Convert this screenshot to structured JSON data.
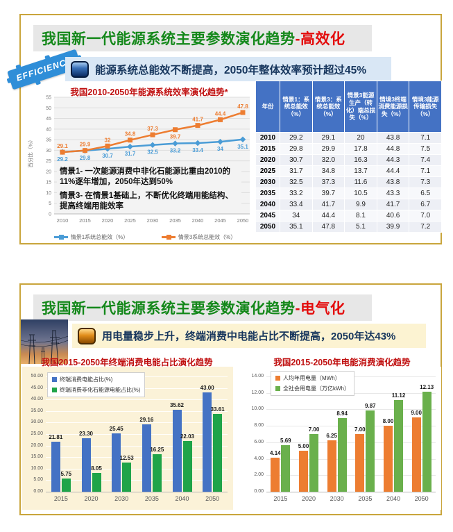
{
  "slide1": {
    "title": "我国新一代能源系统主要参数演化趋势",
    "title_suffix": "-高效化",
    "stamp_label": "EFFICIENCY",
    "banner_text": "能源系统总能效不断提高，2050年整体效率预计超过45%",
    "annotations": [
      "情景1- 一次能源消费中非化石能源比重由2010的11%逐年增加，2050年达到50%",
      "情景3- 在情景1基础上，不断优化终端用能结构、提高终端用能效率"
    ],
    "table": {
      "headers": [
        "年份",
        "情景1：系统总能效（%）",
        "情景3：系统总能效（%）",
        "情景3能源生产（转化）端总损失（%）",
        "情境3终端消费能源损失（%）",
        "情境3能源传输损失（%）"
      ],
      "rows": [
        [
          "2010",
          "29.2",
          "29.1",
          "20",
          "43.8",
          "7.1"
        ],
        [
          "2015",
          "29.8",
          "29.9",
          "17.8",
          "44.8",
          "7.5"
        ],
        [
          "2020",
          "30.7",
          "32.0",
          "16.3",
          "44.3",
          "7.4"
        ],
        [
          "2025",
          "31.7",
          "34.8",
          "13.7",
          "44.4",
          "7.1"
        ],
        [
          "2030",
          "32.5",
          "37.3",
          "11.6",
          "43.8",
          "7.3"
        ],
        [
          "2035",
          "33.2",
          "39.7",
          "10.5",
          "43.3",
          "6.5"
        ],
        [
          "2040",
          "33.4",
          "41.7",
          "9.9",
          "41.7",
          "6.7"
        ],
        [
          "2045",
          "34",
          "44.4",
          "8.1",
          "40.6",
          "7.0"
        ],
        [
          "2050",
          "35.1",
          "47.8",
          "5.1",
          "39.9",
          "7.2"
        ]
      ]
    }
  },
  "slide2": {
    "title": "我国新一代能源系统主要参数演化趋势",
    "title_suffix": "-电气化",
    "banner_text": "用电量稳步上升，终端消费中电能占比不断提高，2050年达43%"
  },
  "chart_data": [
    {
      "type": "line",
      "title": "我国2010-2050年能源系统效率演化趋势*",
      "x": [
        "2010",
        "2015",
        "2020",
        "2025",
        "2030",
        "2035",
        "2040",
        "2045",
        "2050"
      ],
      "series": [
        {
          "name": "情景1系统总能效（%）",
          "color": "#4a9cd6",
          "values": [
            29.2,
            29.8,
            30.7,
            31.7,
            32.5,
            33.2,
            33.4,
            34,
            35.1
          ]
        },
        {
          "name": "情景3系统总能效（%）",
          "color": "#ed7d31",
          "values": [
            29.1,
            29.9,
            32,
            34.8,
            37.3,
            39.7,
            41.7,
            44.4,
            47.8
          ]
        }
      ],
      "ylabel": "百分比（%）",
      "ylim": [
        0,
        55
      ],
      "ytick_step": 5,
      "grid": true,
      "legend_position": "bottom"
    },
    {
      "type": "bar",
      "title": "我国2015-2050年终端消费电能占比演化趋势",
      "categories": [
        "2015",
        "2020",
        "2030",
        "2035",
        "2040",
        "2050"
      ],
      "series": [
        {
          "name": "终端消费电能占比(%)",
          "color": "#4472c4",
          "values": [
            21.81,
            23.3,
            25.45,
            29.16,
            35.62,
            43.0
          ]
        },
        {
          "name": "终端消费非化石能源电能占比(%)",
          "color": "#1fa449",
          "values": [
            5.75,
            8.05,
            12.53,
            16.25,
            22.03,
            33.61
          ]
        }
      ],
      "ylim": [
        0,
        50
      ],
      "ytick_step": 5,
      "grid": true,
      "legend_position": "top-left",
      "plot_bg": "#fbf2d8"
    },
    {
      "type": "bar",
      "title": "我国2015-2050年电能消费演化趋势",
      "categories": [
        "2015",
        "2020",
        "2030",
        "2035",
        "2040",
        "2050"
      ],
      "series": [
        {
          "name": "人均年用电量（MWh）",
          "color": "#ed7d31",
          "values": [
            4.14,
            5.0,
            6.25,
            7.0,
            8.0,
            9.0
          ]
        },
        {
          "name": "全社会用电量（万亿kWh）",
          "color": "#6ab04c",
          "values": [
            5.69,
            7.0,
            8.94,
            9.87,
            11.12,
            12.13
          ]
        }
      ],
      "ylim": [
        0,
        14
      ],
      "ytick_step": 2,
      "grid": true,
      "legend_position": "top-left",
      "plot_bg": "#ffffff"
    }
  ],
  "colors": {
    "slide_border": "#c9a53c",
    "title_green": "#14881a",
    "title_red": "#e30b0b",
    "chart_title_red": "#c01010",
    "banner_blue_bg": "#d9e7f5",
    "banner_yellow_bg": "#fcf3d2",
    "navy_text": "#17365d",
    "table_header": "#4472c4"
  }
}
